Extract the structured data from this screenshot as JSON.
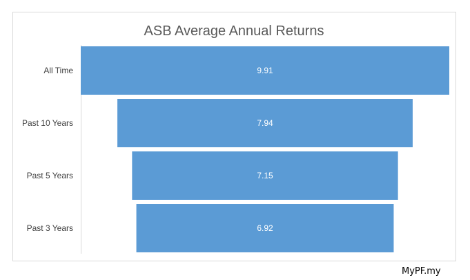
{
  "chart_data": {
    "type": "bar",
    "subtype": "funnel",
    "title": "ASB Average Annual Returns",
    "categories": [
      "All Time",
      "Past 10 Years",
      "Past 5 Years",
      "Past 3 Years"
    ],
    "values": [
      9.91,
      7.94,
      7.15,
      6.92
    ],
    "data_labels": [
      "9.91",
      "7.94",
      "7.15",
      "6.92"
    ],
    "bar_color": "#5b9bd5",
    "label_color": "#ffffff",
    "legend": "none",
    "grid": false
  },
  "watermark": "MyPF.my"
}
